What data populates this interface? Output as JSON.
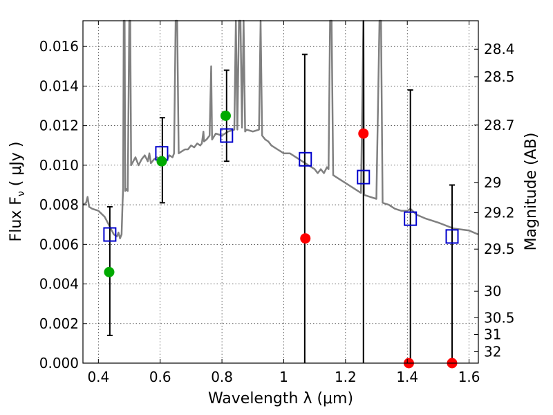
{
  "chart_data": {
    "type": "scatter",
    "xlabel": "Wavelength  λ (μm)",
    "ylabel": "Flux  F",
    "ylabel_sub": "ν",
    "ylabel_unit": " ( μJy )",
    "y2label": "Magnitude (AB)",
    "xlim": [
      0.35,
      1.63
    ],
    "ylim": [
      0.0,
      0.0173
    ],
    "x_ticks": [
      0.4,
      0.6,
      0.8,
      1.0,
      1.2,
      1.4,
      1.6
    ],
    "x_tick_labels": [
      "0.4",
      "0.6",
      "0.8",
      "1",
      "1.2",
      "1.4",
      "1.6"
    ],
    "y_ticks": [
      0.0,
      0.002,
      0.004,
      0.006,
      0.008,
      0.01,
      0.012,
      0.014,
      0.016
    ],
    "y_tick_labels": [
      "0.000",
      "0.002",
      "0.004",
      "0.006",
      "0.008",
      "0.010",
      "0.012",
      "0.014",
      "0.016"
    ],
    "y2_ticks": [
      {
        "label": "28.4",
        "flux": 0.01586
      },
      {
        "label": "28.5",
        "flux": 0.01447
      },
      {
        "label": "28.7",
        "flux": 0.01203
      },
      {
        "label": "29",
        "flux": 0.00913
      },
      {
        "label": "29.2",
        "flux": 0.0076
      },
      {
        "label": "29.5",
        "flux": 0.00576
      },
      {
        "label": "30",
        "flux": 0.00363
      },
      {
        "label": "30.5",
        "flux": 0.00229
      },
      {
        "label": "31",
        "flux": 0.00145
      },
      {
        "label": "32",
        "flux": 0.00058
      }
    ],
    "grid": true,
    "series": [
      {
        "kind": "line",
        "color": "#808080",
        "points": [
          [
            0.35,
            0.008
          ],
          [
            0.36,
            0.0081
          ],
          [
            0.365,
            0.0084
          ],
          [
            0.37,
            0.0079
          ],
          [
            0.38,
            0.0078
          ],
          [
            0.4,
            0.0077
          ],
          [
            0.42,
            0.0074
          ],
          [
            0.43,
            0.0071
          ],
          [
            0.44,
            0.0068
          ],
          [
            0.45,
            0.0065
          ],
          [
            0.46,
            0.0064
          ],
          [
            0.465,
            0.0066
          ],
          [
            0.47,
            0.0063
          ],
          [
            0.475,
            0.0065
          ],
          [
            0.478,
            0.008
          ],
          [
            0.48,
            0.0088
          ],
          [
            0.482,
            0.0173
          ],
          [
            0.485,
            0.0173
          ],
          [
            0.487,
            0.0087
          ],
          [
            0.49,
            0.0088
          ],
          [
            0.495,
            0.0087
          ],
          [
            0.5,
            0.0173
          ],
          [
            0.503,
            0.0173
          ],
          [
            0.506,
            0.01
          ],
          [
            0.52,
            0.0104
          ],
          [
            0.53,
            0.01
          ],
          [
            0.54,
            0.0103
          ],
          [
            0.55,
            0.0105
          ],
          [
            0.56,
            0.0102
          ],
          [
            0.565,
            0.0106
          ],
          [
            0.57,
            0.0101
          ],
          [
            0.58,
            0.0103
          ],
          [
            0.59,
            0.0104
          ],
          [
            0.6,
            0.0102
          ],
          [
            0.61,
            0.0103
          ],
          [
            0.62,
            0.0102
          ],
          [
            0.63,
            0.0105
          ],
          [
            0.64,
            0.0104
          ],
          [
            0.645,
            0.0106
          ],
          [
            0.65,
            0.0173
          ],
          [
            0.655,
            0.0173
          ],
          [
            0.66,
            0.0106
          ],
          [
            0.67,
            0.0107
          ],
          [
            0.68,
            0.0108
          ],
          [
            0.69,
            0.0108
          ],
          [
            0.7,
            0.011
          ],
          [
            0.71,
            0.0109
          ],
          [
            0.72,
            0.0111
          ],
          [
            0.73,
            0.011
          ],
          [
            0.735,
            0.0111
          ],
          [
            0.74,
            0.0117
          ],
          [
            0.742,
            0.0112
          ],
          [
            0.75,
            0.0113
          ],
          [
            0.76,
            0.0115
          ],
          [
            0.765,
            0.015
          ],
          [
            0.768,
            0.0113
          ],
          [
            0.78,
            0.0116
          ],
          [
            0.8,
            0.0115
          ],
          [
            0.82,
            0.0117
          ],
          [
            0.84,
            0.0118
          ],
          [
            0.845,
            0.0173
          ],
          [
            0.85,
            0.0118
          ],
          [
            0.855,
            0.0173
          ],
          [
            0.86,
            0.0173
          ],
          [
            0.865,
            0.0119
          ],
          [
            0.87,
            0.0173
          ],
          [
            0.875,
            0.0117
          ],
          [
            0.88,
            0.0118
          ],
          [
            0.9,
            0.0117
          ],
          [
            0.92,
            0.0118
          ],
          [
            0.925,
            0.0173
          ],
          [
            0.93,
            0.0115
          ],
          [
            0.94,
            0.0113
          ],
          [
            0.95,
            0.0112
          ],
          [
            0.96,
            0.011
          ],
          [
            0.98,
            0.0108
          ],
          [
            1.0,
            0.0106
          ],
          [
            1.02,
            0.0106
          ],
          [
            1.04,
            0.0104
          ],
          [
            1.06,
            0.0102
          ],
          [
            1.08,
            0.01
          ],
          [
            1.1,
            0.0098
          ],
          [
            1.11,
            0.0096
          ],
          [
            1.12,
            0.0098
          ],
          [
            1.13,
            0.0096
          ],
          [
            1.14,
            0.0099
          ],
          [
            1.145,
            0.0098
          ],
          [
            1.15,
            0.0173
          ],
          [
            1.155,
            0.0173
          ],
          [
            1.16,
            0.0095
          ],
          [
            1.18,
            0.0093
          ],
          [
            1.2,
            0.0091
          ],
          [
            1.22,
            0.0089
          ],
          [
            1.24,
            0.0087
          ],
          [
            1.25,
            0.0086
          ],
          [
            1.258,
            0.0173
          ],
          [
            1.26,
            0.0085
          ],
          [
            1.28,
            0.0084
          ],
          [
            1.3,
            0.0083
          ],
          [
            1.31,
            0.0173
          ],
          [
            1.315,
            0.0173
          ],
          [
            1.32,
            0.0081
          ],
          [
            1.34,
            0.008
          ],
          [
            1.36,
            0.0078
          ],
          [
            1.38,
            0.0077
          ],
          [
            1.4,
            0.0077
          ],
          [
            1.41,
            0.0078
          ],
          [
            1.43,
            0.0075
          ],
          [
            1.46,
            0.0073
          ],
          [
            1.5,
            0.0071
          ],
          [
            1.55,
            0.0068
          ],
          [
            1.6,
            0.0067
          ],
          [
            1.63,
            0.0065
          ]
        ]
      },
      {
        "kind": "open-square",
        "color": "#0000cc",
        "points": [
          [
            0.437,
            0.0065
          ],
          [
            0.605,
            0.0106
          ],
          [
            0.815,
            0.0115
          ],
          [
            1.07,
            0.0103
          ],
          [
            1.258,
            0.0094
          ],
          [
            1.41,
            0.0073
          ],
          [
            1.545,
            0.0064
          ]
        ]
      },
      {
        "kind": "filled-circle",
        "color": "#00aa00",
        "points": [
          [
            0.435,
            0.0046
          ],
          [
            0.605,
            0.0102
          ],
          [
            0.812,
            0.0125
          ]
        ]
      },
      {
        "kind": "filled-circle",
        "color": "#ff0000",
        "points": [
          [
            1.07,
            0.0063
          ],
          [
            1.258,
            0.0116
          ],
          [
            1.405,
            0.0
          ],
          [
            1.545,
            0.0
          ]
        ]
      },
      {
        "kind": "errorbar",
        "color": "#000000",
        "points": [
          {
            "x": 0.437,
            "lo": 0.0014,
            "hi": 0.0079
          },
          {
            "x": 0.607,
            "lo": 0.0081,
            "hi": 0.0124
          },
          {
            "x": 0.815,
            "lo": 0.0102,
            "hi": 0.0148
          },
          {
            "x": 1.068,
            "lo": 0.0,
            "hi": 0.0156
          },
          {
            "x": 1.258,
            "lo": 0.0,
            "hi": 0.0173
          },
          {
            "x": 1.41,
            "lo": 0.0,
            "hi": 0.0138
          },
          {
            "x": 1.545,
            "lo": 0.0,
            "hi": 0.009
          }
        ]
      }
    ]
  }
}
